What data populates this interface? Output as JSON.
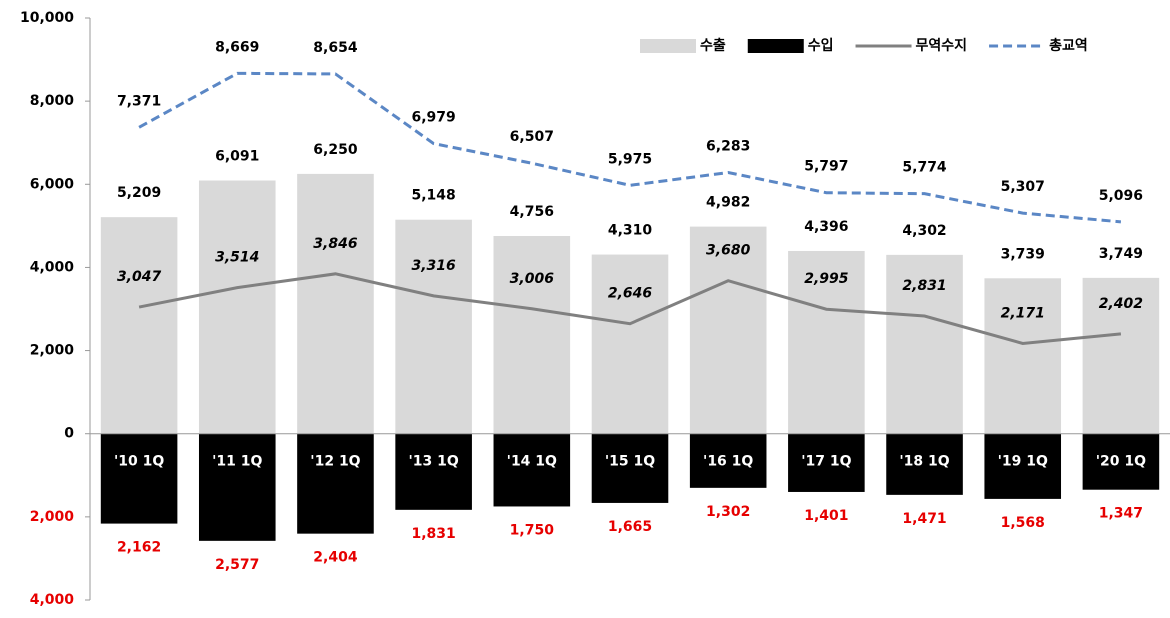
{
  "chart_data": {
    "type": "bar",
    "categories": [
      "'10 1Q",
      "'11 1Q",
      "'12 1Q",
      "'13 1Q",
      "'14 1Q",
      "'15 1Q",
      "'16 1Q",
      "'17 1Q",
      "'18 1Q",
      "'19 1Q",
      "'20 1Q"
    ],
    "ylim": [
      -4000,
      10000
    ],
    "yticks": [
      {
        "value": 10000,
        "label": "10,000"
      },
      {
        "value": 8000,
        "label": "8,000"
      },
      {
        "value": 6000,
        "label": "6,000"
      },
      {
        "value": 4000,
        "label": "4,000"
      },
      {
        "value": 2000,
        "label": "2,000"
      },
      0,
      {
        "value": -2000,
        "label": "2,000"
      },
      {
        "value": -4000,
        "label": "4,000"
      }
    ],
    "negative_label_color": "#e60000",
    "legend": "top-right",
    "series": [
      {
        "name": "수출",
        "type": "bar",
        "color": "#d9d9d9",
        "values": [
          5209,
          6091,
          6250,
          5148,
          4756,
          4310,
          4982,
          4396,
          4302,
          3739,
          3749
        ],
        "value_labels": [
          "5,209",
          "6,091",
          "6,250",
          "5,148",
          "4,756",
          "4,310",
          "4,982",
          "4,396",
          "4,302",
          "3,739",
          "3,749"
        ]
      },
      {
        "name": "수입",
        "type": "bar",
        "color": "#000000",
        "values": [
          -2162,
          -2577,
          -2404,
          -1831,
          -1750,
          -1665,
          -1302,
          -1401,
          -1471,
          -1568,
          -1347
        ],
        "value_labels": [
          "2,162",
          "2,577",
          "2,404",
          "1,831",
          "1,750",
          "1,665",
          "1,302",
          "1,401",
          "1,471",
          "1,568",
          "1,347"
        ]
      },
      {
        "name": "무역수지",
        "type": "line",
        "color": "#808080",
        "line_style": "solid",
        "values": [
          3047,
          3514,
          3846,
          3316,
          3006,
          2646,
          3680,
          2995,
          2831,
          2171,
          2402
        ],
        "value_labels": [
          "3,047",
          "3,514",
          "3,846",
          "3,316",
          "3,006",
          "2,646",
          "3,680",
          "2,995",
          "2,831",
          "2,171",
          "2,402"
        ]
      },
      {
        "name": "총교역",
        "type": "line",
        "color": "#5b87c5",
        "line_style": "dashed",
        "values": [
          7371,
          8669,
          8654,
          6979,
          6507,
          5975,
          6283,
          5797,
          5774,
          5307,
          5096
        ],
        "value_labels": [
          "7,371",
          "8,669",
          "8,654",
          "6,979",
          "6,507",
          "5,975",
          "6,283",
          "5,797",
          "5,774",
          "5,307",
          "5,096"
        ]
      }
    ]
  }
}
